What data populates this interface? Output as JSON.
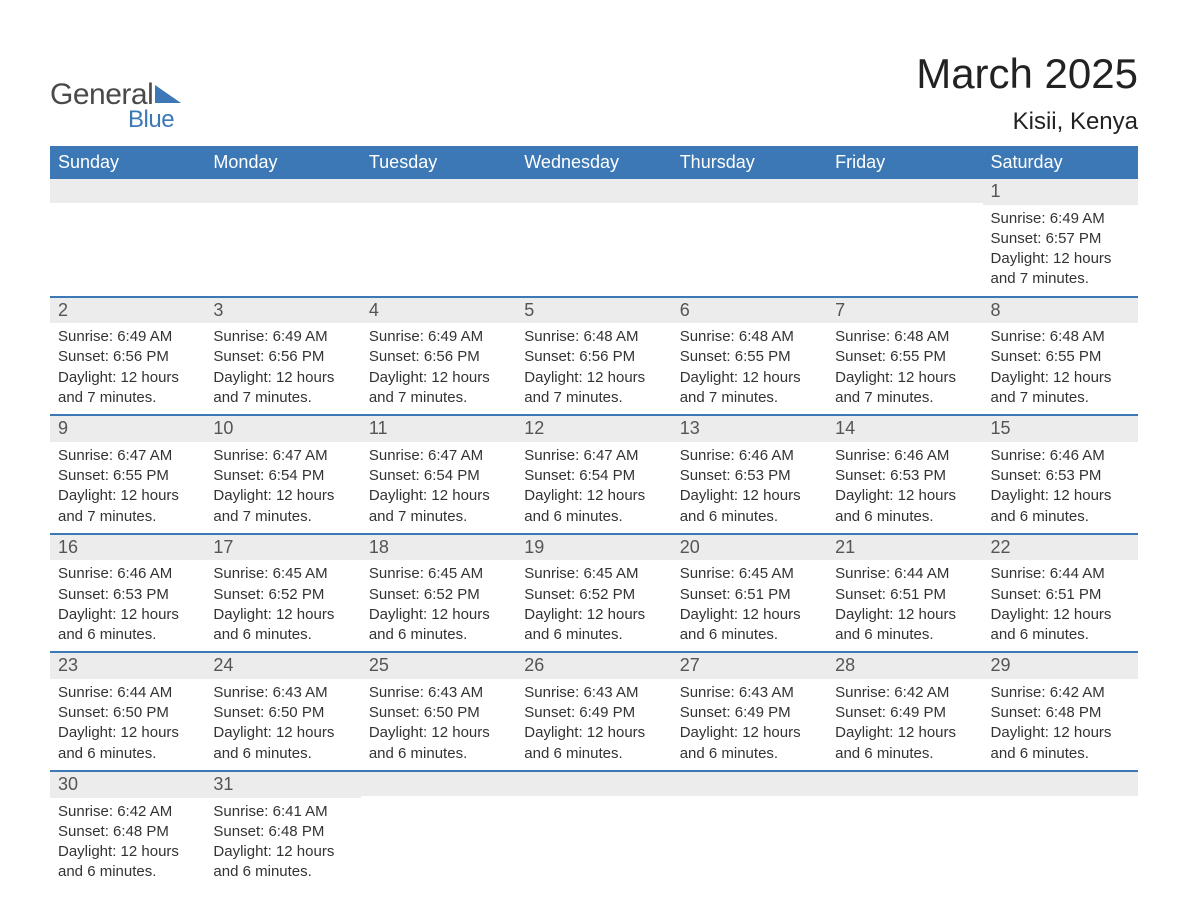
{
  "logo": {
    "text1": "General",
    "text2": "Blue",
    "accent_color": "#3b78b5"
  },
  "title": "March 2025",
  "location": "Kisii, Kenya",
  "colors": {
    "header_bg": "#3b78b5",
    "header_text": "#ffffff",
    "daynum_bg": "#ececec",
    "daynum_text": "#555555",
    "body_text": "#333333",
    "border": "#3b78b5",
    "page_bg": "#ffffff"
  },
  "typography": {
    "title_fontsize": 42,
    "location_fontsize": 24,
    "weekday_fontsize": 18,
    "daynum_fontsize": 18,
    "body_fontsize": 15,
    "font_family": "Arial"
  },
  "weekdays": [
    "Sunday",
    "Monday",
    "Tuesday",
    "Wednesday",
    "Thursday",
    "Friday",
    "Saturday"
  ],
  "weeks": [
    [
      {
        "day": "",
        "sunrise": "",
        "sunset": "",
        "daylight": ""
      },
      {
        "day": "",
        "sunrise": "",
        "sunset": "",
        "daylight": ""
      },
      {
        "day": "",
        "sunrise": "",
        "sunset": "",
        "daylight": ""
      },
      {
        "day": "",
        "sunrise": "",
        "sunset": "",
        "daylight": ""
      },
      {
        "day": "",
        "sunrise": "",
        "sunset": "",
        "daylight": ""
      },
      {
        "day": "",
        "sunrise": "",
        "sunset": "",
        "daylight": ""
      },
      {
        "day": "1",
        "sunrise": "Sunrise: 6:49 AM",
        "sunset": "Sunset: 6:57 PM",
        "daylight": "Daylight: 12 hours and 7 minutes."
      }
    ],
    [
      {
        "day": "2",
        "sunrise": "Sunrise: 6:49 AM",
        "sunset": "Sunset: 6:56 PM",
        "daylight": "Daylight: 12 hours and 7 minutes."
      },
      {
        "day": "3",
        "sunrise": "Sunrise: 6:49 AM",
        "sunset": "Sunset: 6:56 PM",
        "daylight": "Daylight: 12 hours and 7 minutes."
      },
      {
        "day": "4",
        "sunrise": "Sunrise: 6:49 AM",
        "sunset": "Sunset: 6:56 PM",
        "daylight": "Daylight: 12 hours and 7 minutes."
      },
      {
        "day": "5",
        "sunrise": "Sunrise: 6:48 AM",
        "sunset": "Sunset: 6:56 PM",
        "daylight": "Daylight: 12 hours and 7 minutes."
      },
      {
        "day": "6",
        "sunrise": "Sunrise: 6:48 AM",
        "sunset": "Sunset: 6:55 PM",
        "daylight": "Daylight: 12 hours and 7 minutes."
      },
      {
        "day": "7",
        "sunrise": "Sunrise: 6:48 AM",
        "sunset": "Sunset: 6:55 PM",
        "daylight": "Daylight: 12 hours and 7 minutes."
      },
      {
        "day": "8",
        "sunrise": "Sunrise: 6:48 AM",
        "sunset": "Sunset: 6:55 PM",
        "daylight": "Daylight: 12 hours and 7 minutes."
      }
    ],
    [
      {
        "day": "9",
        "sunrise": "Sunrise: 6:47 AM",
        "sunset": "Sunset: 6:55 PM",
        "daylight": "Daylight: 12 hours and 7 minutes."
      },
      {
        "day": "10",
        "sunrise": "Sunrise: 6:47 AM",
        "sunset": "Sunset: 6:54 PM",
        "daylight": "Daylight: 12 hours and 7 minutes."
      },
      {
        "day": "11",
        "sunrise": "Sunrise: 6:47 AM",
        "sunset": "Sunset: 6:54 PM",
        "daylight": "Daylight: 12 hours and 7 minutes."
      },
      {
        "day": "12",
        "sunrise": "Sunrise: 6:47 AM",
        "sunset": "Sunset: 6:54 PM",
        "daylight": "Daylight: 12 hours and 6 minutes."
      },
      {
        "day": "13",
        "sunrise": "Sunrise: 6:46 AM",
        "sunset": "Sunset: 6:53 PM",
        "daylight": "Daylight: 12 hours and 6 minutes."
      },
      {
        "day": "14",
        "sunrise": "Sunrise: 6:46 AM",
        "sunset": "Sunset: 6:53 PM",
        "daylight": "Daylight: 12 hours and 6 minutes."
      },
      {
        "day": "15",
        "sunrise": "Sunrise: 6:46 AM",
        "sunset": "Sunset: 6:53 PM",
        "daylight": "Daylight: 12 hours and 6 minutes."
      }
    ],
    [
      {
        "day": "16",
        "sunrise": "Sunrise: 6:46 AM",
        "sunset": "Sunset: 6:53 PM",
        "daylight": "Daylight: 12 hours and 6 minutes."
      },
      {
        "day": "17",
        "sunrise": "Sunrise: 6:45 AM",
        "sunset": "Sunset: 6:52 PM",
        "daylight": "Daylight: 12 hours and 6 minutes."
      },
      {
        "day": "18",
        "sunrise": "Sunrise: 6:45 AM",
        "sunset": "Sunset: 6:52 PM",
        "daylight": "Daylight: 12 hours and 6 minutes."
      },
      {
        "day": "19",
        "sunrise": "Sunrise: 6:45 AM",
        "sunset": "Sunset: 6:52 PM",
        "daylight": "Daylight: 12 hours and 6 minutes."
      },
      {
        "day": "20",
        "sunrise": "Sunrise: 6:45 AM",
        "sunset": "Sunset: 6:51 PM",
        "daylight": "Daylight: 12 hours and 6 minutes."
      },
      {
        "day": "21",
        "sunrise": "Sunrise: 6:44 AM",
        "sunset": "Sunset: 6:51 PM",
        "daylight": "Daylight: 12 hours and 6 minutes."
      },
      {
        "day": "22",
        "sunrise": "Sunrise: 6:44 AM",
        "sunset": "Sunset: 6:51 PM",
        "daylight": "Daylight: 12 hours and 6 minutes."
      }
    ],
    [
      {
        "day": "23",
        "sunrise": "Sunrise: 6:44 AM",
        "sunset": "Sunset: 6:50 PM",
        "daylight": "Daylight: 12 hours and 6 minutes."
      },
      {
        "day": "24",
        "sunrise": "Sunrise: 6:43 AM",
        "sunset": "Sunset: 6:50 PM",
        "daylight": "Daylight: 12 hours and 6 minutes."
      },
      {
        "day": "25",
        "sunrise": "Sunrise: 6:43 AM",
        "sunset": "Sunset: 6:50 PM",
        "daylight": "Daylight: 12 hours and 6 minutes."
      },
      {
        "day": "26",
        "sunrise": "Sunrise: 6:43 AM",
        "sunset": "Sunset: 6:49 PM",
        "daylight": "Daylight: 12 hours and 6 minutes."
      },
      {
        "day": "27",
        "sunrise": "Sunrise: 6:43 AM",
        "sunset": "Sunset: 6:49 PM",
        "daylight": "Daylight: 12 hours and 6 minutes."
      },
      {
        "day": "28",
        "sunrise": "Sunrise: 6:42 AM",
        "sunset": "Sunset: 6:49 PM",
        "daylight": "Daylight: 12 hours and 6 minutes."
      },
      {
        "day": "29",
        "sunrise": "Sunrise: 6:42 AM",
        "sunset": "Sunset: 6:48 PM",
        "daylight": "Daylight: 12 hours and 6 minutes."
      }
    ],
    [
      {
        "day": "30",
        "sunrise": "Sunrise: 6:42 AM",
        "sunset": "Sunset: 6:48 PM",
        "daylight": "Daylight: 12 hours and 6 minutes."
      },
      {
        "day": "31",
        "sunrise": "Sunrise: 6:41 AM",
        "sunset": "Sunset: 6:48 PM",
        "daylight": "Daylight: 12 hours and 6 minutes."
      },
      {
        "day": "",
        "sunrise": "",
        "sunset": "",
        "daylight": ""
      },
      {
        "day": "",
        "sunrise": "",
        "sunset": "",
        "daylight": ""
      },
      {
        "day": "",
        "sunrise": "",
        "sunset": "",
        "daylight": ""
      },
      {
        "day": "",
        "sunrise": "",
        "sunset": "",
        "daylight": ""
      },
      {
        "day": "",
        "sunrise": "",
        "sunset": "",
        "daylight": ""
      }
    ]
  ]
}
